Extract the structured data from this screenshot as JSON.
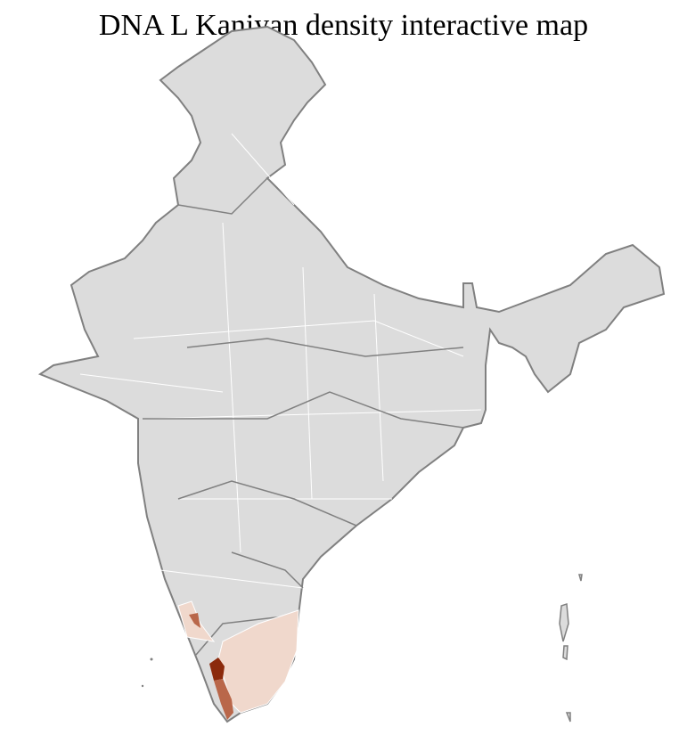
{
  "title": "DNA L Kaniyan density interactive map",
  "colors": {
    "base_fill": "#dcdcdc",
    "state_border": "#808080",
    "district_border": "#ffffff",
    "density_low": "#f0d8cc",
    "density_mid": "#b9674a",
    "density_high": "#8b2a0c"
  },
  "highlighted_regions": [
    {
      "region": "tamil-nadu-districts",
      "level": "low"
    },
    {
      "region": "karnataka-south-districts",
      "level": "low"
    },
    {
      "region": "kerala-north-coast",
      "level": "mid"
    },
    {
      "region": "kerala-central",
      "level": "high"
    },
    {
      "region": "kerala-south",
      "level": "mid"
    }
  ]
}
